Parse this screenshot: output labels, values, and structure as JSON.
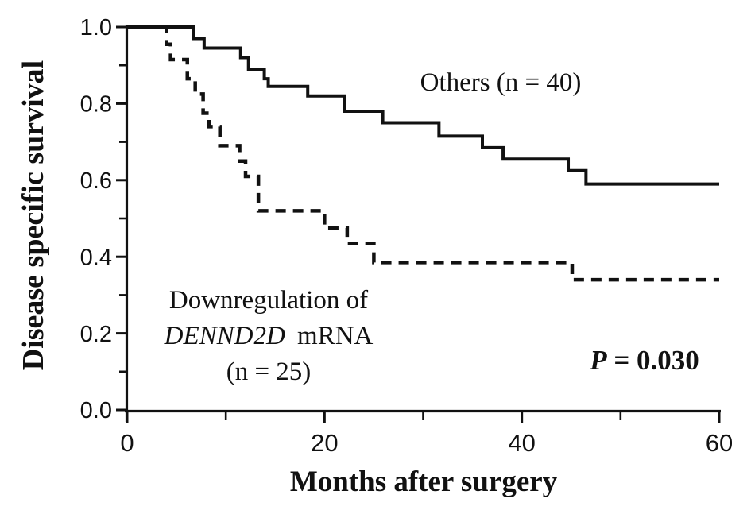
{
  "figure": {
    "group1_label": "Others (n = 40)",
    "group2_line1": "Downregulation of",
    "group2_line2_italic": "DENND2D",
    "group2_line2_rest": " mRNA",
    "group2_line3": "(n = 25)",
    "p_value_italic": "P",
    "p_value_rest": " = 0.030"
  },
  "chart_data": {
    "type": "line",
    "subtype": "kaplan_meier_step",
    "title": "",
    "xlabel": "Months after surgery",
    "ylabel": "Disease specific survival",
    "xlim": [
      0,
      60
    ],
    "ylim": [
      0.0,
      1.0
    ],
    "grid": false,
    "legend_position": "inline-labels",
    "p_value": "P = 0.030",
    "colors": {
      "curve": "#111111",
      "background": "#ffffff"
    },
    "x_ticks": {
      "major": [
        0,
        20,
        40,
        60
      ],
      "major_labels": [
        "0",
        "20",
        "40",
        "60"
      ],
      "minor": [
        10,
        30,
        50
      ]
    },
    "y_ticks": {
      "major": [
        1.0,
        0.8,
        0.6,
        0.4,
        0.2,
        0.0
      ],
      "major_labels": [
        "1.0",
        "0.8",
        "0.6",
        "0.4",
        "0.2",
        "0.0"
      ],
      "minor": [
        0.9,
        0.7,
        0.5,
        0.3,
        0.1
      ]
    },
    "series": [
      {
        "name": "Others (n = 40)",
        "n": 40,
        "line_style": "solid",
        "start": [
          0,
          1.0
        ],
        "end_x": 60,
        "end_value": 0.59,
        "steps": [
          [
            6.7,
            0.97
          ],
          [
            7.8,
            0.945
          ],
          [
            11.5,
            0.92
          ],
          [
            12.3,
            0.89
          ],
          [
            13.9,
            0.865
          ],
          [
            14.3,
            0.845
          ],
          [
            18.3,
            0.82
          ],
          [
            22.0,
            0.78
          ],
          [
            25.9,
            0.75
          ],
          [
            31.6,
            0.715
          ],
          [
            36.0,
            0.685
          ],
          [
            38.1,
            0.655
          ],
          [
            44.7,
            0.625
          ],
          [
            46.5,
            0.59
          ]
        ]
      },
      {
        "name": "Downregulation of DENND2D mRNA (n = 25)",
        "n": 25,
        "line_style": "dashed",
        "start": [
          0,
          1.0
        ],
        "end_x": 60,
        "end_value": 0.34,
        "steps": [
          [
            4.0,
            0.955
          ],
          [
            4.4,
            0.915
          ],
          [
            6.1,
            0.865
          ],
          [
            6.9,
            0.825
          ],
          [
            7.7,
            0.775
          ],
          [
            8.3,
            0.74
          ],
          [
            9.4,
            0.69
          ],
          [
            11.4,
            0.65
          ],
          [
            12.0,
            0.61
          ],
          [
            13.3,
            0.52
          ],
          [
            20.0,
            0.475
          ],
          [
            22.3,
            0.435
          ],
          [
            25.0,
            0.385
          ],
          [
            45.1,
            0.34
          ]
        ]
      }
    ]
  }
}
